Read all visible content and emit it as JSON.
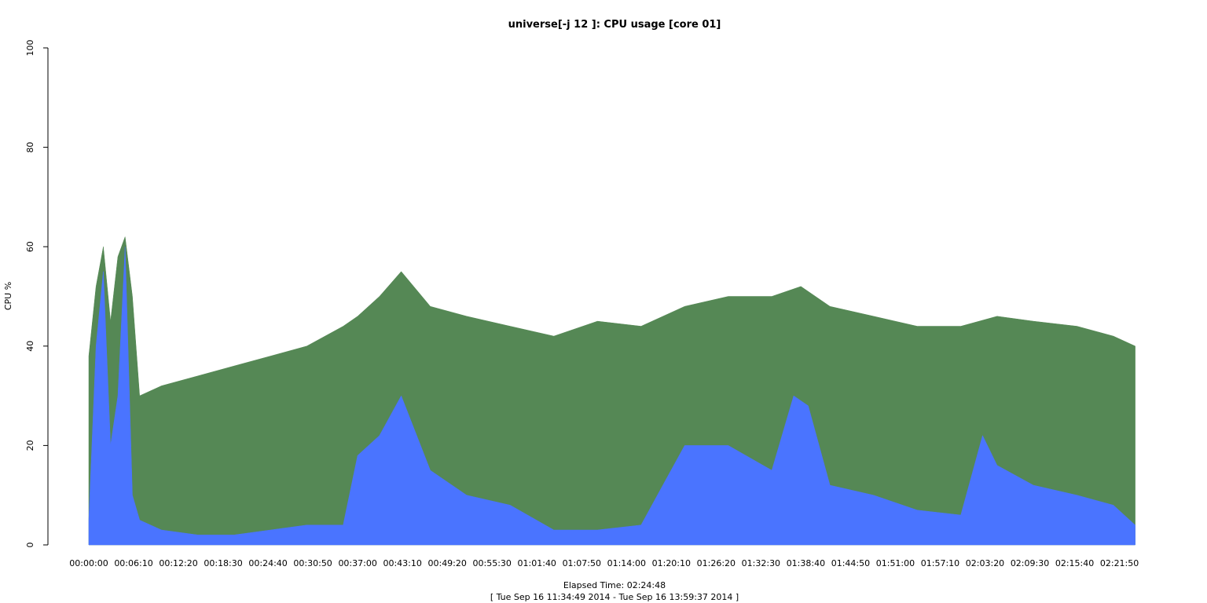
{
  "chart_data": {
    "type": "area",
    "title": "universe[-j 12  ]: CPU usage [core 01]",
    "xlabel": "Elapsed Time: 02:24:48",
    "xlabel_sub": "[ Tue Sep 16 11:34:49 2014 - Tue Sep 16 13:59:37 2014 ]",
    "ylabel": "CPU %",
    "ylim": [
      0,
      100
    ],
    "y_ticks": [
      "0",
      "20",
      "40",
      "60",
      "80",
      "100"
    ],
    "x_range_seconds": [
      0,
      8688
    ],
    "x_ticks": [
      "00:00:00",
      "00:06:10",
      "00:12:20",
      "00:18:30",
      "00:24:40",
      "00:30:50",
      "00:37:00",
      "00:43:10",
      "00:49:20",
      "00:55:30",
      "01:01:40",
      "01:07:50",
      "01:14:00",
      "01:20:10",
      "01:26:20",
      "01:32:30",
      "01:38:40",
      "01:44:50",
      "01:51:00",
      "01:57:10",
      "02:03:20",
      "02:09:30",
      "02:15:40",
      "02:21:50"
    ],
    "grid": false,
    "colors": {
      "user": "#558855",
      "system": "#4a74ff"
    },
    "series": [
      {
        "name": "",
        "color": "#558855",
        "x": [
          "00:00:00",
          "00:01:00",
          "00:02:00",
          "00:03:00",
          "00:04:00",
          "00:05:00",
          "00:06:00",
          "00:07:00",
          "00:10:00",
          "00:15:00",
          "00:20:00",
          "00:25:00",
          "00:30:00",
          "00:35:00",
          "00:37:00",
          "00:40:00",
          "00:43:00",
          "00:47:00",
          "00:52:00",
          "00:58:00",
          "01:04:00",
          "01:10:00",
          "01:16:00",
          "01:22:00",
          "01:28:00",
          "01:34:00",
          "01:38:00",
          "01:42:00",
          "01:48:00",
          "01:54:00",
          "02:00:00",
          "02:05:00",
          "02:10:00",
          "02:16:00",
          "02:21:00",
          "02:24:00"
        ],
        "y": [
          38,
          52,
          60,
          45,
          58,
          62,
          50,
          30,
          32,
          34,
          36,
          38,
          40,
          44,
          46,
          50,
          55,
          48,
          46,
          44,
          42,
          45,
          44,
          48,
          50,
          50,
          52,
          48,
          46,
          44,
          44,
          46,
          45,
          44,
          42,
          40
        ]
      },
      {
        "name": "",
        "color": "#4a74ff",
        "x": [
          "00:00:00",
          "00:01:00",
          "00:02:00",
          "00:03:00",
          "00:04:00",
          "00:05:00",
          "00:06:00",
          "00:07:00",
          "00:10:00",
          "00:15:00",
          "00:20:00",
          "00:25:00",
          "00:30:00",
          "00:35:00",
          "00:37:00",
          "00:40:00",
          "00:43:00",
          "00:47:00",
          "00:52:00",
          "00:58:00",
          "01:04:00",
          "01:10:00",
          "01:16:00",
          "01:19:00",
          "01:22:00",
          "01:28:00",
          "01:34:00",
          "01:37:00",
          "01:39:00",
          "01:42:00",
          "01:48:00",
          "01:54:00",
          "02:00:00",
          "02:03:00",
          "02:05:00",
          "02:10:00",
          "02:16:00",
          "02:21:00",
          "02:24:00"
        ],
        "y": [
          5,
          40,
          55,
          20,
          30,
          60,
          10,
          5,
          3,
          2,
          2,
          3,
          4,
          4,
          18,
          22,
          30,
          15,
          10,
          8,
          3,
          3,
          4,
          12,
          20,
          20,
          15,
          30,
          28,
          12,
          10,
          7,
          6,
          22,
          16,
          12,
          10,
          8,
          4
        ]
      }
    ]
  }
}
